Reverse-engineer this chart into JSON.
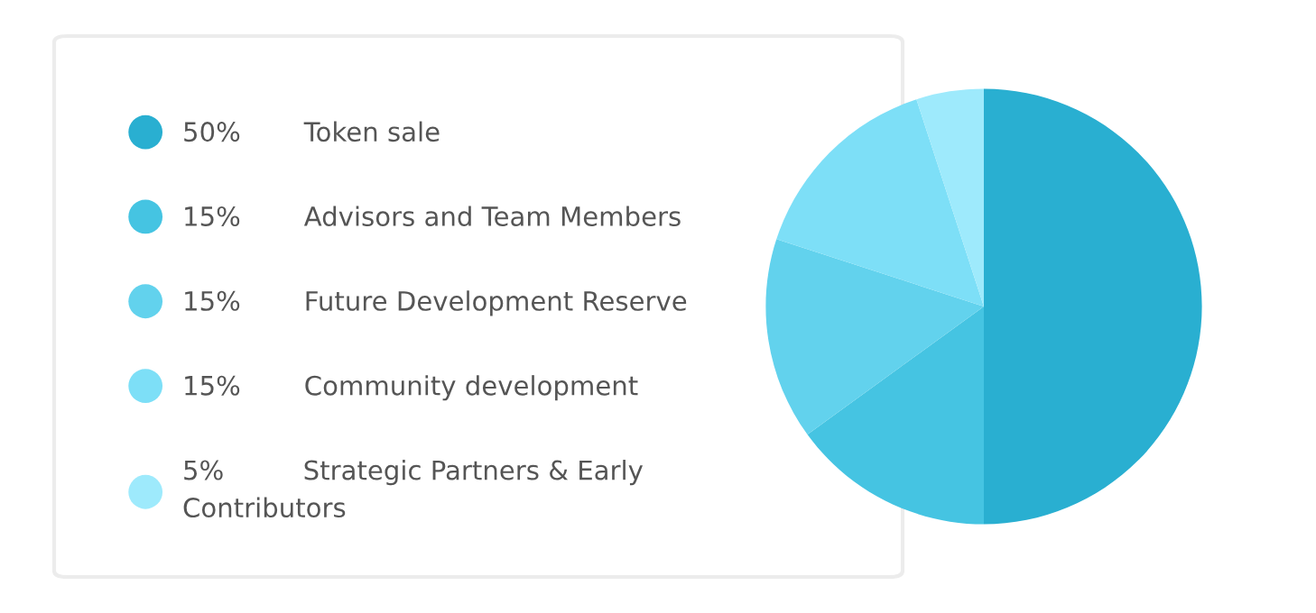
{
  "chart_data": {
    "type": "pie",
    "categories": [
      "Token sale",
      "Advisors and Team Members",
      "Future Development Reserve",
      "Community development",
      "Strategic Partners & Early Contributors"
    ],
    "values": [
      50,
      15,
      15,
      15,
      5
    ],
    "value_labels": [
      "50%",
      "15%",
      "15%",
      "15%",
      "5%"
    ],
    "colors": [
      "#29afd1",
      "#45c4e2",
      "#62d2ed",
      "#7ddff7",
      "#9eeafc"
    ],
    "legend": "left"
  }
}
